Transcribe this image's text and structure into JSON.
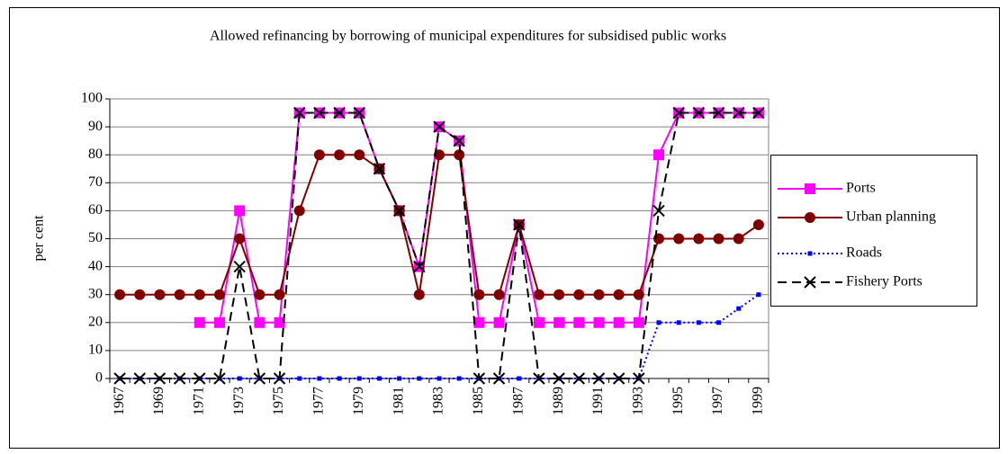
{
  "chart_data": {
    "type": "line",
    "title": "Allowed refinancing by borrowing of municipal expenditures for subsidised public works",
    "y_label": "per cent",
    "categories": [
      "1967",
      null,
      "1969",
      null,
      "1971",
      null,
      "1973",
      null,
      "1975",
      null,
      "1977",
      null,
      "1979",
      null,
      "1981",
      null,
      "1983",
      null,
      "1985",
      null,
      "1987",
      null,
      "1989",
      null,
      "1991",
      null,
      "1993",
      null,
      "1995",
      null,
      "1997",
      null,
      "1999"
    ],
    "ylim": [
      0,
      100
    ],
    "yticks": [
      0,
      10,
      20,
      30,
      40,
      50,
      60,
      70,
      80,
      90,
      100
    ],
    "grid": true,
    "legend": "right",
    "series": [
      {
        "name": "Ports",
        "color": "#ff00ff",
        "marker": "square",
        "line_style": "solid",
        "values": [
          null,
          null,
          null,
          null,
          20,
          20,
          60,
          20,
          20,
          95,
          95,
          95,
          95,
          75,
          60,
          40,
          90,
          85,
          20,
          20,
          55,
          20,
          20,
          20,
          20,
          20,
          20,
          80,
          95,
          95,
          95,
          95,
          95
        ]
      },
      {
        "name": "Urban planning",
        "color": "#800000",
        "marker": "circle",
        "line_style": "solid",
        "values": [
          30,
          30,
          30,
          30,
          30,
          30,
          50,
          30,
          30,
          60,
          80,
          80,
          80,
          75,
          60,
          30,
          80,
          80,
          30,
          30,
          55,
          30,
          30,
          30,
          30,
          30,
          30,
          50,
          50,
          50,
          50,
          50,
          55
        ]
      },
      {
        "name": "Roads",
        "color": "#0000ff",
        "marker": "small-square",
        "line_style": "dotted",
        "values": [
          0,
          0,
          0,
          0,
          0,
          0,
          0,
          0,
          0,
          0,
          0,
          0,
          0,
          0,
          0,
          0,
          0,
          0,
          0,
          0,
          0,
          0,
          0,
          0,
          0,
          0,
          0,
          20,
          20,
          20,
          20,
          25,
          30
        ]
      },
      {
        "name": "Fishery Ports",
        "color": "#000000",
        "marker": "x",
        "line_style": "dashed",
        "values": [
          0,
          0,
          0,
          0,
          0,
          0,
          40,
          0,
          0,
          95,
          95,
          95,
          95,
          75,
          60,
          40,
          90,
          85,
          0,
          0,
          55,
          0,
          0,
          0,
          0,
          0,
          0,
          60,
          95,
          95,
          95,
          95,
          95
        ]
      }
    ]
  }
}
